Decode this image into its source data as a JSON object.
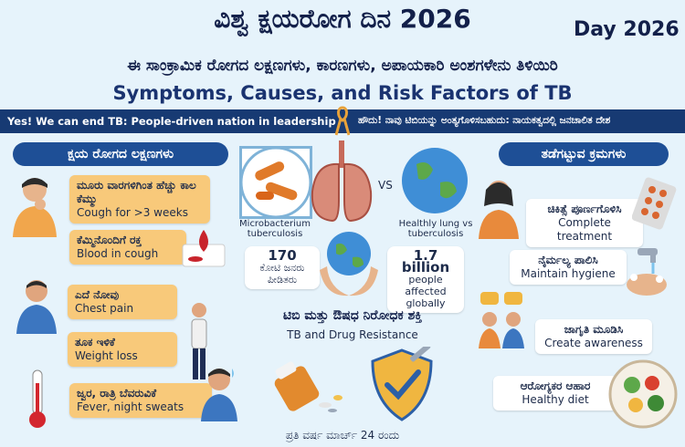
{
  "header": {
    "title_kn": "ವಿಶ್ವ ಕ್ಷಯರೋಗ ದಿನ 2026",
    "day_label": "Day 2026",
    "subtitle_kn": "ಈ ಸಾಂಕ್ರಾಮಿಕ ರೋಗದ ಲಕ್ಷಣಗಳು, ಕಾರಣಗಳು, ಅಪಾಯಕಾರಿ ಅಂಶಗಳೇನು ತಿಳಿಯಿರಿ",
    "subtitle_en": "Symptoms, Causes, and Risk Factors of TB"
  },
  "banner": {
    "left": "Yes! We can end TB: People-driven nation in leadership",
    "right": "ಹೌದು! ನಾವು ಟಿಬಿಯನ್ನು ಅಂತ್ಯಗೊಳಿಸಬಹುದು: ನಾಯಕತ್ವದಲ್ಲಿ ಜನಚಾಲಿತ ದೇಶ"
  },
  "symptoms": {
    "heading": "ಕ್ಷಯ ರೋಗದ ಲಕ್ಷಣಗಳು",
    "items": [
      {
        "kn": "ಮೂರು ವಾರಗಳಿಗಿಂತ ಹೆಚ್ಚು ಕಾಲ ಕೆಮ್ಮು",
        "en": "Cough for >3 weeks"
      },
      {
        "kn": "ಕೆಮ್ಮಿನೊಂದಿಗೆ ರಕ್ತ",
        "en": "Blood in cough"
      },
      {
        "kn": "ಎದೆ ನೋವು",
        "en": "Chest pain"
      },
      {
        "kn": "ತೂಕ ಇಳಿಕೆ",
        "en": "Weight loss"
      },
      {
        "kn": "ಜ್ವರ, ರಾತ್ರಿ ಬೆವರುವಿಕೆ",
        "en": "Fever, night sweats"
      }
    ]
  },
  "center": {
    "microbe_label": "Microbacterium tuberculosis",
    "vs": "VS",
    "healthy_label": "Healthly lung vs tuberculosis",
    "stat_left_num": "170",
    "stat_left_text": "ಕೋಟಿ ಜನರು ಪೀಡಿತರು",
    "stat_right_num": "1.7 billion",
    "stat_right_text": "people affected globally",
    "resistance_kn": "ಟಿಬಿ ಮತ್ತು ಔಷಧ ನಿರೋಧಕ ಶಕ್ತಿ",
    "resistance_en": "TB and Drug Resistance"
  },
  "prevention": {
    "heading": "ತಡೆಗಟ್ಟುವ ಕ್ರಮಗಳು",
    "items": [
      {
        "kn": "ಚಿಕಿತ್ಸೆ ಪೂರ್ಣಗೊಳಿಸಿ",
        "en": "Complete treatment"
      },
      {
        "kn": "ನೈರ್ಮಲ್ಯ ಪಾಲಿಸಿ",
        "en": "Maintain hygiene"
      },
      {
        "kn": "ಜಾಗೃತಿ ಮೂಡಿಸಿ",
        "en": "Create awareness"
      },
      {
        "kn": "ಆರೋಗ್ಯಕರ ಆಹಾರ",
        "en": "Healthy diet"
      }
    ]
  },
  "footer": "ಪ್ರತಿ ವರ್ಷ ಮಾರ್ಚ್ 24 ರಂದು",
  "colors": {
    "accent": "#1e4f96",
    "card": "#f8c97a",
    "background": "#e6f3fb"
  }
}
